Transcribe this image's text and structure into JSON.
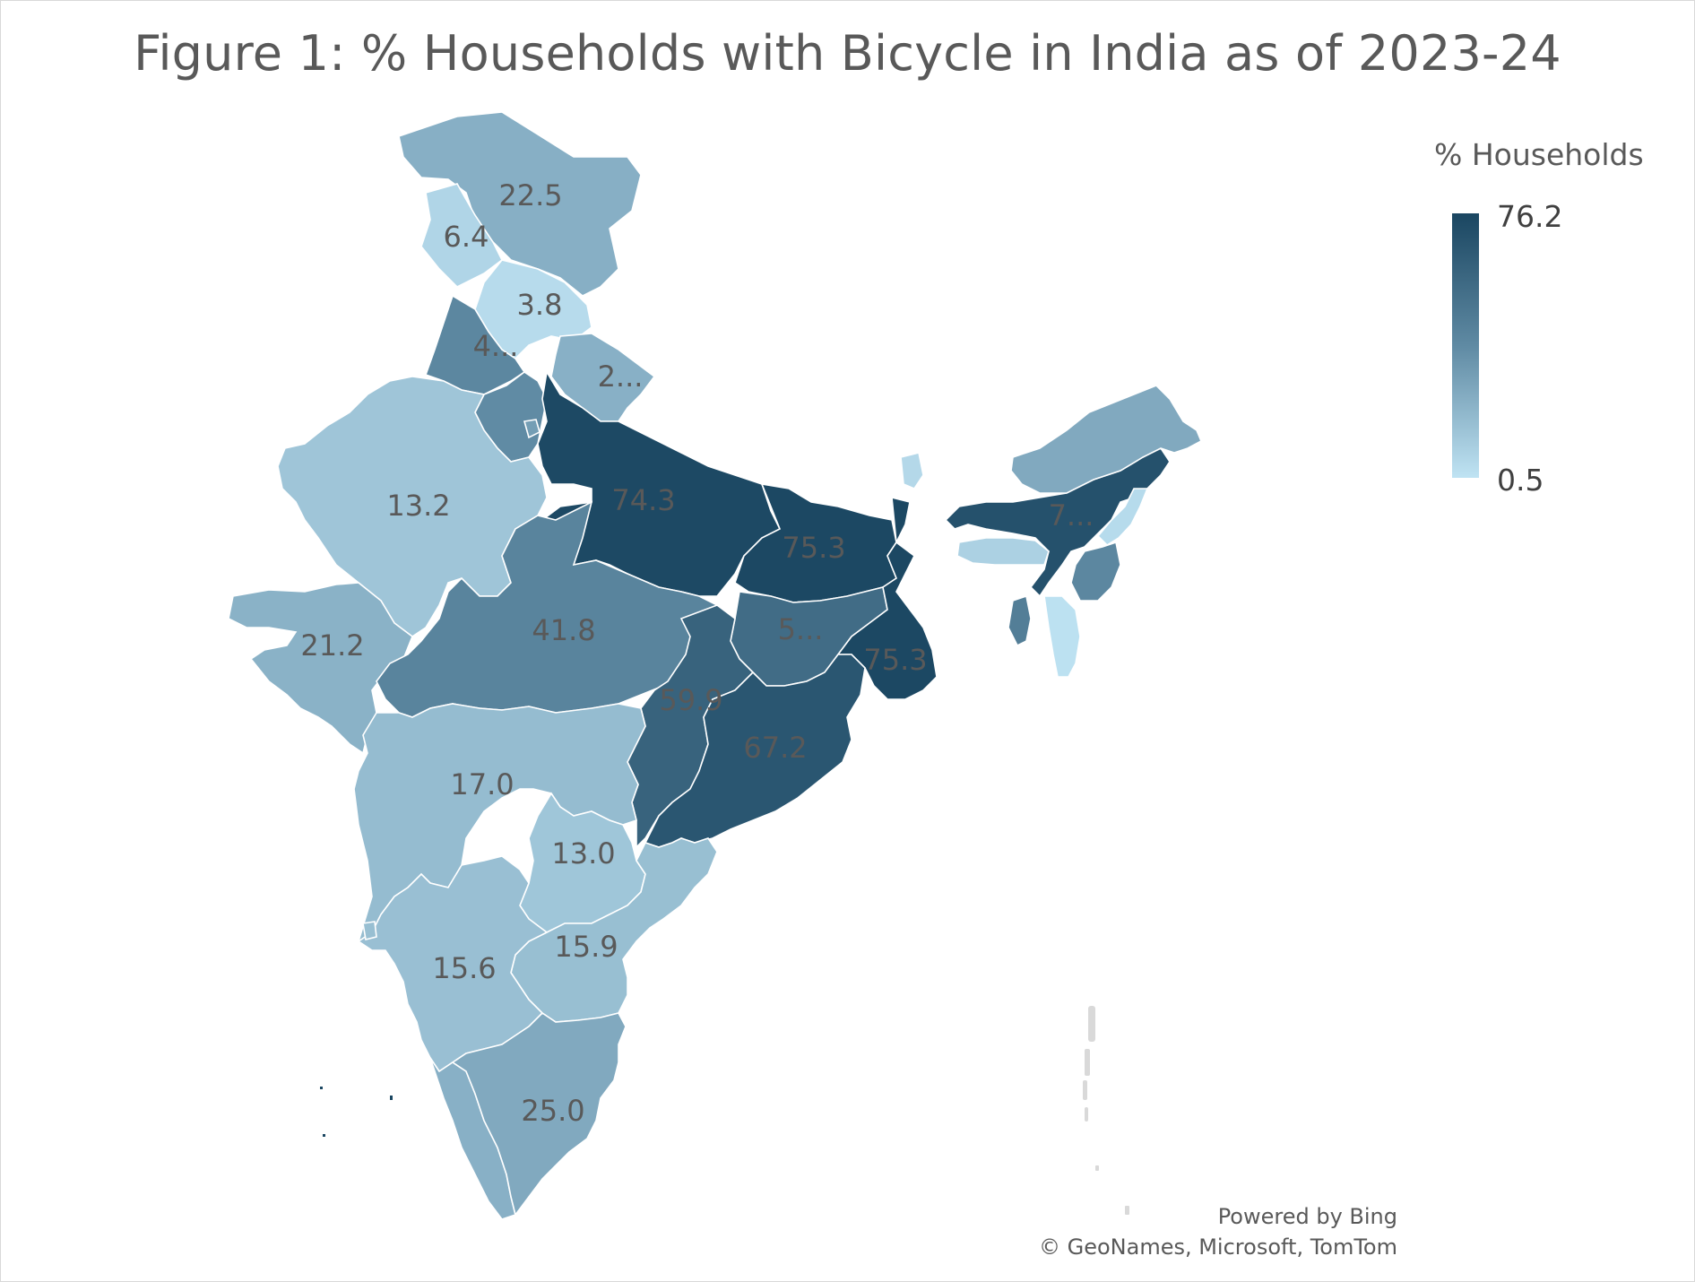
{
  "title": "Figure 1: % Households with Bicycle in India as of 2023-24",
  "legend": {
    "title": "% Households",
    "max_label": "76.2",
    "min_label": "0.5",
    "max": 76.2,
    "min": 0.5,
    "color_low": "#bfe3f3",
    "color_mid": "#5f8aa3",
    "color_high": "#1a4661"
  },
  "map_labels": [
    {
      "id": "jammu-kashmir",
      "label": "22.5",
      "value": 22.5
    },
    {
      "id": "himachal-pradesh",
      "label": "6.4",
      "value": 6.4
    },
    {
      "id": "ladakh-hills",
      "label": "3.8",
      "value": 3.8
    },
    {
      "id": "punjab",
      "label": "4...",
      "value": 40.0
    },
    {
      "id": "uttarakhand",
      "label": "2...",
      "value": 22.0
    },
    {
      "id": "rajasthan",
      "label": "13.2",
      "value": 13.2
    },
    {
      "id": "uttar-pradesh",
      "label": "74.3",
      "value": 74.3
    },
    {
      "id": "bihar",
      "label": "75.3",
      "value": 75.3
    },
    {
      "id": "gujarat",
      "label": "21.2",
      "value": 21.2
    },
    {
      "id": "madhya-pradesh",
      "label": "41.8",
      "value": 41.8
    },
    {
      "id": "jharkhand",
      "label": "5...",
      "value": 55.0
    },
    {
      "id": "west-bengal",
      "label": "75.3",
      "value": 75.3
    },
    {
      "id": "chhattisgarh",
      "label": "59.9",
      "value": 59.9
    },
    {
      "id": "odisha",
      "label": "67.2",
      "value": 67.2
    },
    {
      "id": "maharashtra",
      "label": "17.0",
      "value": 17.0
    },
    {
      "id": "telangana",
      "label": "13.0",
      "value": 13.0
    },
    {
      "id": "andhra-pradesh",
      "label": "15.9",
      "value": 15.9
    },
    {
      "id": "karnataka",
      "label": "15.6",
      "value": 15.6
    },
    {
      "id": "tamil-nadu",
      "label": "25.0",
      "value": 25.0
    },
    {
      "id": "assam",
      "label": "7...",
      "value": 70.0
    }
  ],
  "unlabeled_regions": [
    {
      "id": "haryana",
      "value": 38.0
    },
    {
      "id": "sikkim",
      "value": 5.0
    },
    {
      "id": "arunachal-pradesh",
      "value": 25.0
    },
    {
      "id": "meghalaya",
      "value": 8.0
    },
    {
      "id": "nagaland",
      "value": 4.0
    },
    {
      "id": "manipur",
      "value": 40.0
    },
    {
      "id": "mizoram",
      "value": 1.5
    },
    {
      "id": "tripura",
      "value": 45.0
    },
    {
      "id": "kerala",
      "value": 22.0
    },
    {
      "id": "delhi",
      "value": 30.0
    }
  ],
  "credits": {
    "line1": "Powered by Bing",
    "line2": "© GeoNames, Microsoft, TomTom"
  }
}
